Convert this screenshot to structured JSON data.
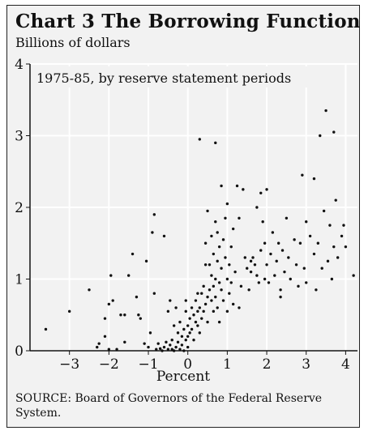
{
  "chart": {
    "title": "Chart 3   The Borrowing Function",
    "subtitle": "Billions of dollars",
    "source": "SOURCE: Board of Governors of the Federal Reserve System."
  },
  "chart_data": {
    "type": "scatter",
    "title": "Chart 3   The Borrowing Function",
    "ylabel": "Billions of dollars",
    "xlabel": "Percent",
    "annotation": "1975-85, by reserve statement periods",
    "xlim": [
      -4,
      4.3
    ],
    "ylim": [
      0,
      4
    ],
    "xticks": [
      -3,
      -2,
      -1,
      0,
      1,
      2,
      3,
      4
    ],
    "yticks": [
      0,
      1,
      2,
      3,
      4
    ],
    "grid": true,
    "colors": {
      "background": "#f2f2f2",
      "grid": "#ffffff",
      "points": "#111111"
    },
    "points": [
      [
        -3.6,
        0.3
      ],
      [
        -3.0,
        0.55
      ],
      [
        -2.5,
        0.85
      ],
      [
        -2.3,
        0.05
      ],
      [
        -2.25,
        0.1
      ],
      [
        -2.1,
        0.2
      ],
      [
        -2.0,
        0.65
      ],
      [
        -1.95,
        1.05
      ],
      [
        -1.9,
        0.7
      ],
      [
        -1.8,
        0.02
      ],
      [
        -1.7,
        0.5
      ],
      [
        -1.6,
        0.12
      ],
      [
        -1.5,
        1.05
      ],
      [
        -1.4,
        1.35
      ],
      [
        -1.3,
        0.75
      ],
      [
        -1.2,
        0.45
      ],
      [
        -1.1,
        0.1
      ],
      [
        -1.05,
        1.25
      ],
      [
        -1.0,
        0.05
      ],
      [
        -0.95,
        0.25
      ],
      [
        -0.9,
        1.65
      ],
      [
        -0.85,
        1.9
      ],
      [
        -0.85,
        0.8
      ],
      [
        -0.8,
        0.02
      ],
      [
        -0.75,
        0.1
      ],
      [
        -0.7,
        0.03
      ],
      [
        -0.65,
        0.0
      ],
      [
        -0.6,
        0.05
      ],
      [
        -0.6,
        1.6
      ],
      [
        -0.55,
        0.12
      ],
      [
        -0.5,
        0.02
      ],
      [
        -0.5,
        0.55
      ],
      [
        -0.45,
        0.08
      ],
      [
        -0.45,
        0.7
      ],
      [
        -0.4,
        0.15
      ],
      [
        -0.4,
        0.02
      ],
      [
        -0.35,
        0.0
      ],
      [
        -0.35,
        0.35
      ],
      [
        -0.3,
        0.05
      ],
      [
        -0.3,
        0.6
      ],
      [
        -0.25,
        0.12
      ],
      [
        -0.25,
        0.25
      ],
      [
        -0.2,
        0.02
      ],
      [
        -0.2,
        0.4
      ],
      [
        -0.15,
        0.08
      ],
      [
        -0.15,
        0.2
      ],
      [
        -0.1,
        0.3
      ],
      [
        -0.1,
        0.0
      ],
      [
        -0.05,
        0.15
      ],
      [
        -0.05,
        0.55
      ],
      [
        0.0,
        0.2
      ],
      [
        0.0,
        0.35
      ],
      [
        0.0,
        0.05
      ],
      [
        0.05,
        0.45
      ],
      [
        0.05,
        0.25
      ],
      [
        0.1,
        0.6
      ],
      [
        0.1,
        0.3
      ],
      [
        0.15,
        0.15
      ],
      [
        0.15,
        0.5
      ],
      [
        0.2,
        0.4
      ],
      [
        0.2,
        0.7
      ],
      [
        0.25,
        0.35
      ],
      [
        0.25,
        0.55
      ],
      [
        0.3,
        0.6
      ],
      [
        0.3,
        2.95
      ],
      [
        0.3,
        0.25
      ],
      [
        0.35,
        0.8
      ],
      [
        0.35,
        0.45
      ],
      [
        0.4,
        0.55
      ],
      [
        0.4,
        0.9
      ],
      [
        0.45,
        0.65
      ],
      [
        0.45,
        1.5
      ],
      [
        0.5,
        0.75
      ],
      [
        0.5,
        1.95
      ],
      [
        0.5,
        0.4
      ],
      [
        0.55,
        0.85
      ],
      [
        0.55,
        1.2
      ],
      [
        0.6,
        0.7
      ],
      [
        0.6,
        1.05
      ],
      [
        0.6,
        1.6
      ],
      [
        0.65,
        0.9
      ],
      [
        0.65,
        0.55
      ],
      [
        0.65,
        1.35
      ],
      [
        0.7,
        1.0
      ],
      [
        0.7,
        1.8
      ],
      [
        0.7,
        0.75
      ],
      [
        0.7,
        2.9
      ],
      [
        0.75,
        1.25
      ],
      [
        0.75,
        0.6
      ],
      [
        0.75,
        1.65
      ],
      [
        0.8,
        0.95
      ],
      [
        0.8,
        1.45
      ],
      [
        0.8,
        0.4
      ],
      [
        0.85,
        1.15
      ],
      [
        0.85,
        2.3
      ],
      [
        0.85,
        0.85
      ],
      [
        0.9,
        1.55
      ],
      [
        0.9,
        0.7
      ],
      [
        0.95,
        1.3
      ],
      [
        0.95,
        1.85
      ],
      [
        1.0,
        1.0
      ],
      [
        1.0,
        0.55
      ],
      [
        1.0,
        2.05
      ],
      [
        1.05,
        1.2
      ],
      [
        1.05,
        0.8
      ],
      [
        1.1,
        1.45
      ],
      [
        1.1,
        0.95
      ],
      [
        1.15,
        1.7
      ],
      [
        1.15,
        0.65
      ],
      [
        1.2,
        1.1
      ],
      [
        1.25,
        2.3
      ],
      [
        1.3,
        1.85
      ],
      [
        1.35,
        0.9
      ],
      [
        1.4,
        2.25
      ],
      [
        1.45,
        1.3
      ],
      [
        1.5,
        1.15
      ],
      [
        1.55,
        0.85
      ],
      [
        1.6,
        1.25
      ],
      [
        1.6,
        1.1
      ],
      [
        1.65,
        1.3
      ],
      [
        1.7,
        1.2
      ],
      [
        1.75,
        1.05
      ],
      [
        1.75,
        2.0
      ],
      [
        1.8,
        0.95
      ],
      [
        1.85,
        2.2
      ],
      [
        1.85,
        1.4
      ],
      [
        1.9,
        1.8
      ],
      [
        1.95,
        1.5
      ],
      [
        2.0,
        1.2
      ],
      [
        2.0,
        2.25
      ],
      [
        2.05,
        0.95
      ],
      [
        2.1,
        1.35
      ],
      [
        2.15,
        1.65
      ],
      [
        2.2,
        1.05
      ],
      [
        2.25,
        1.25
      ],
      [
        2.3,
        1.5
      ],
      [
        2.35,
        0.85
      ],
      [
        2.4,
        1.4
      ],
      [
        2.45,
        1.1
      ],
      [
        2.5,
        1.85
      ],
      [
        2.55,
        1.3
      ],
      [
        2.6,
        1.0
      ],
      [
        2.7,
        1.55
      ],
      [
        2.75,
        1.2
      ],
      [
        2.8,
        0.9
      ],
      [
        2.85,
        1.5
      ],
      [
        2.9,
        2.45
      ],
      [
        2.95,
        1.15
      ],
      [
        3.0,
        1.8
      ],
      [
        3.0,
        0.95
      ],
      [
        3.1,
        1.6
      ],
      [
        3.2,
        1.35
      ],
      [
        3.2,
        2.4
      ],
      [
        3.25,
        0.85
      ],
      [
        3.3,
        1.5
      ],
      [
        3.4,
        1.15
      ],
      [
        3.45,
        1.95
      ],
      [
        3.5,
        3.35
      ],
      [
        3.55,
        1.25
      ],
      [
        3.6,
        1.75
      ],
      [
        3.65,
        1.0
      ],
      [
        3.7,
        3.05
      ],
      [
        3.7,
        1.45
      ],
      [
        3.75,
        2.1
      ],
      [
        3.8,
        1.3
      ],
      [
        3.9,
        1.6
      ],
      [
        3.95,
        1.75
      ],
      [
        4.0,
        1.45
      ],
      [
        4.2,
        1.05
      ],
      [
        3.35,
        3.0
      ],
      [
        2.35,
        0.75
      ],
      [
        1.95,
        1.0
      ],
      [
        1.3,
        0.6
      ],
      [
        0.45,
        1.2
      ],
      [
        0.25,
        0.8
      ],
      [
        -0.05,
        0.7
      ],
      [
        -1.25,
        0.5
      ],
      [
        -1.6,
        0.5
      ],
      [
        -2.0,
        0.02
      ],
      [
        -2.1,
        0.45
      ]
    ]
  }
}
